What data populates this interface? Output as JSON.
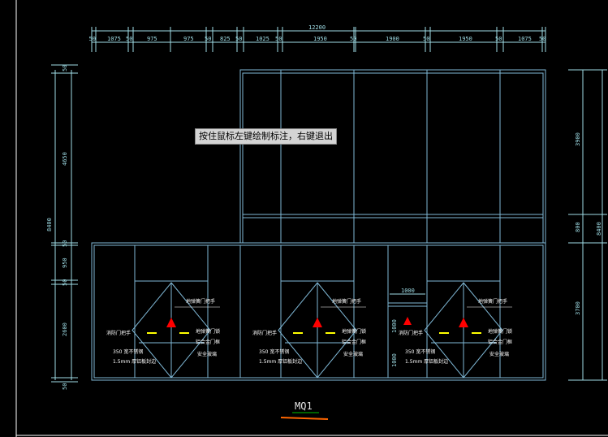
{
  "status_hint": "按住鼠标左键绘制标注，右键退出",
  "drawing_title": "MQ1",
  "dims_top": {
    "overall": "12200",
    "segments": [
      "50",
      "1075",
      "50",
      "975",
      "975",
      "50",
      "825",
      "50",
      "1025",
      "50",
      "1950",
      "50",
      "1900",
      "50",
      "1950",
      "50",
      "1075",
      "50"
    ]
  },
  "dims_left": {
    "overall": "8400",
    "segments": [
      "50",
      "4650",
      "50",
      "950",
      "50",
      "2600",
      "50"
    ]
  },
  "dims_right": {
    "overall": "8400",
    "segments": [
      "3900",
      "800",
      "3700"
    ]
  },
  "door_mid": {
    "width": "1000",
    "height_a": "1000",
    "height_b": "1000"
  },
  "annotations": {
    "door1": {
      "hinge": "地弹簧门锁",
      "handle": "地弹簧门把手",
      "label": "消防门把手",
      "lock": "铝合金门框",
      "closer": "安全玻璃",
      "frame_a": "350 宽不锈钢",
      "frame_b": "1.5mm 厚铝板封边"
    },
    "door2": {
      "hinge": "地弹簧门锁",
      "handle": "地弹簧门把手",
      "label": "消防门把手",
      "lock": "铝合金门框",
      "closer": "安全玻璃",
      "frame_a": "350 宽不锈钢",
      "frame_b": "1.5mm 厚铝板封边"
    },
    "door3": {
      "hinge": "地弹簧门锁",
      "handle": "地弹簧门把手",
      "label": "消防门把手",
      "lock": "铝合金门框",
      "closer": "安全玻璃",
      "frame_a": "350 宽不锈钢",
      "frame_b": "1.5mm 厚铝板封边"
    }
  },
  "colors": {
    "background": "#000000",
    "line": "#7fb8d6",
    "dimension": "#9fdde6",
    "arrow": "#ff0000",
    "handle": "#ffff00",
    "title_underline": "#ff6600"
  }
}
